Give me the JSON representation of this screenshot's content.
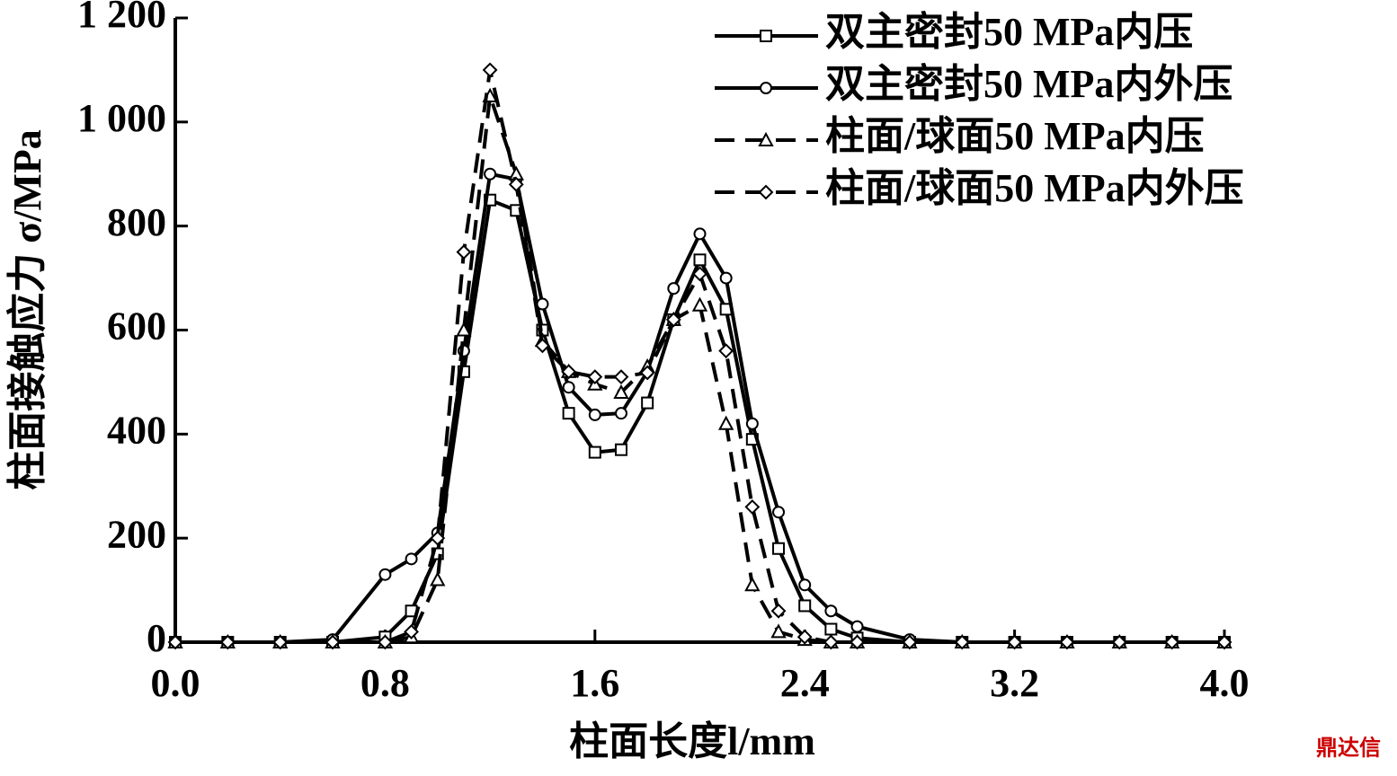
{
  "chart_data": {
    "type": "line",
    "xlabel": "柱面长度l/mm",
    "ylabel": "柱面接触应力 σ/MPa",
    "watermark": "鼎达信",
    "x": [
      0,
      0.2,
      0.4,
      0.6,
      0.8,
      0.9,
      1.0,
      1.1,
      1.2,
      1.3,
      1.4,
      1.5,
      1.6,
      1.7,
      1.8,
      1.9,
      2.0,
      2.1,
      2.2,
      2.3,
      2.4,
      2.5,
      2.6,
      2.8,
      3.0,
      3.2,
      3.4,
      3.6,
      3.8,
      4.0
    ],
    "series": [
      {
        "name": "双主密封50 MPa内压",
        "color": "#000000",
        "marker": "square",
        "linestyle": "solid",
        "values": [
          0,
          0,
          0,
          0,
          10,
          60,
          170,
          520,
          850,
          830,
          600,
          440,
          365,
          370,
          460,
          620,
          735,
          640,
          390,
          180,
          70,
          25,
          8,
          0,
          0,
          0,
          0,
          0,
          0,
          0
        ]
      },
      {
        "name": "双主密封50 MPa内外压",
        "color": "#000000",
        "marker": "circle",
        "linestyle": "solid",
        "values": [
          0,
          0,
          0,
          5,
          130,
          160,
          210,
          560,
          900,
          890,
          650,
          490,
          437,
          440,
          520,
          680,
          785,
          700,
          420,
          250,
          110,
          60,
          30,
          5,
          0,
          0,
          0,
          0,
          0,
          0
        ]
      },
      {
        "name": "柱面/球面50 MPa内压",
        "color": "#000000",
        "marker": "triangle",
        "linestyle": "dashed",
        "values": [
          0,
          0,
          0,
          0,
          0,
          10,
          120,
          600,
          1050,
          900,
          580,
          520,
          496,
          480,
          530,
          620,
          648,
          420,
          110,
          20,
          5,
          0,
          0,
          0,
          0,
          0,
          0,
          0,
          0,
          0
        ]
      },
      {
        "name": "柱面/球面50 MPa内外压",
        "color": "#000000",
        "marker": "diamond",
        "linestyle": "dashed",
        "values": [
          0,
          0,
          0,
          0,
          0,
          20,
          200,
          750,
          1100,
          880,
          570,
          520,
          510,
          510,
          518,
          620,
          708,
          560,
          260,
          60,
          10,
          0,
          0,
          0,
          0,
          0,
          0,
          0,
          0,
          0
        ]
      }
    ],
    "xlim": [
      0,
      4.0
    ],
    "xticks": [
      {
        "value": 0,
        "label": "0.0"
      },
      {
        "value": 0.8,
        "label": "0.8"
      },
      {
        "value": 1.6,
        "label": "1.6"
      },
      {
        "value": 2.4,
        "label": "2.4"
      },
      {
        "value": 3.2,
        "label": "3.2"
      },
      {
        "value": 4.0,
        "label": "4.0"
      }
    ],
    "ylim": [
      0,
      1200
    ],
    "yticks": [
      0,
      200,
      400,
      600,
      800,
      {
        "value": 1000,
        "label": "1 000"
      },
      {
        "value": 1200,
        "label": "1 200"
      }
    ],
    "legend": "upper right",
    "grid": false
  }
}
